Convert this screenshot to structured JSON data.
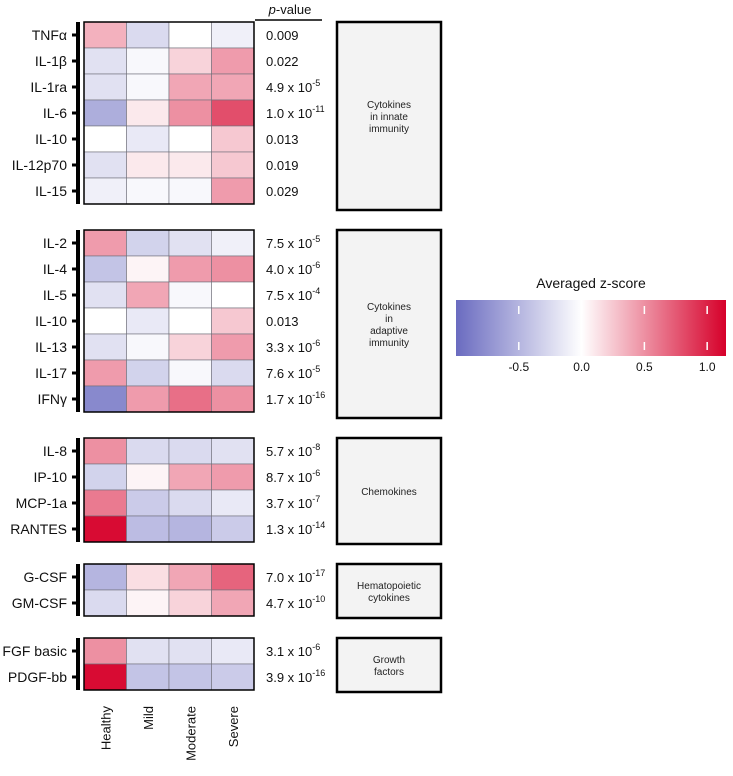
{
  "chart_data": {
    "type": "heatmap",
    "columns": [
      "Healthy",
      "Mild",
      "Moderate",
      "Severe"
    ],
    "pvalue_header": {
      "italic": "p",
      "rest": "-value"
    },
    "groups": [
      {
        "label_lines": [
          "Cytokines",
          "in innate",
          "immunity"
        ],
        "rows": [
          {
            "label": "TNFα",
            "values": [
              0.35,
              -0.25,
              0.0,
              -0.1
            ],
            "p_text": "0.009",
            "p_exp": ""
          },
          {
            "label": "IL-1β",
            "values": [
              -0.2,
              -0.05,
              0.2,
              0.45
            ],
            "p_text": "0.022",
            "p_exp": ""
          },
          {
            "label": "IL-1ra",
            "values": [
              -0.2,
              -0.05,
              0.4,
              0.4
            ],
            "p_text": "4.9 x 10",
            "p_exp": "-5"
          },
          {
            "label": "IL-6",
            "values": [
              -0.55,
              0.1,
              0.5,
              0.8
            ],
            "p_text": "1.0 x 10",
            "p_exp": "-11"
          },
          {
            "label": "IL-10",
            "values": [
              0.0,
              -0.15,
              0.0,
              0.25
            ],
            "p_text": "0.013",
            "p_exp": ""
          },
          {
            "label": "IL-12p70",
            "values": [
              -0.2,
              0.1,
              0.1,
              0.25
            ],
            "p_text": "0.019",
            "p_exp": ""
          },
          {
            "label": "IL-15",
            "values": [
              -0.1,
              -0.05,
              -0.05,
              0.45
            ],
            "p_text": "0.029",
            "p_exp": ""
          }
        ]
      },
      {
        "label_lines": [
          "Cytokines",
          "in",
          "adaptive",
          "immunity"
        ],
        "rows": [
          {
            "label": "IL-2",
            "values": [
              0.45,
              -0.3,
              -0.2,
              -0.1
            ],
            "p_text": "7.5 x 10",
            "p_exp": "-5"
          },
          {
            "label": "IL-4",
            "values": [
              -0.4,
              0.05,
              0.45,
              0.5
            ],
            "p_text": "4.0 x 10",
            "p_exp": "-6"
          },
          {
            "label": "IL-5",
            "values": [
              -0.2,
              0.4,
              -0.05,
              0.0
            ],
            "p_text": "7.5 x 10",
            "p_exp": "-4"
          },
          {
            "label": "IL-10",
            "values": [
              0.0,
              -0.15,
              0.0,
              0.25
            ],
            "p_text": "0.013",
            "p_exp": ""
          },
          {
            "label": "IL-13",
            "values": [
              -0.2,
              -0.05,
              0.2,
              0.45
            ],
            "p_text": "3.3 x 10",
            "p_exp": "-6"
          },
          {
            "label": "IL-17",
            "values": [
              0.45,
              -0.3,
              -0.05,
              -0.25
            ],
            "p_text": "7.6 x 10",
            "p_exp": "-5"
          },
          {
            "label": "IFNγ",
            "values": [
              -0.8,
              0.45,
              0.65,
              0.5
            ],
            "p_text": "1.7 x 10",
            "p_exp": "-16"
          }
        ]
      },
      {
        "label_lines": [
          "Chemokines"
        ],
        "rows": [
          {
            "label": "IL-8",
            "values": [
              0.5,
              -0.25,
              -0.25,
              -0.2
            ],
            "p_text": "5.7 x 10",
            "p_exp": "-8"
          },
          {
            "label": "IP-10",
            "values": [
              -0.3,
              0.05,
              0.4,
              0.45
            ],
            "p_text": "8.7 x 10",
            "p_exp": "-6"
          },
          {
            "label": "MCP-1a",
            "values": [
              0.6,
              -0.35,
              -0.25,
              -0.15
            ],
            "p_text": "3.7 x 10",
            "p_exp": "-7"
          },
          {
            "label": "RANTES",
            "values": [
              1.1,
              -0.45,
              -0.5,
              -0.35
            ],
            "p_text": "1.3 x 10",
            "p_exp": "-14"
          }
        ]
      },
      {
        "label_lines": [
          "Hematopoietic",
          "cytokines"
        ],
        "rows": [
          {
            "label": "G-CSF",
            "values": [
              -0.5,
              0.15,
              0.4,
              0.7
            ],
            "p_text": "7.0 x 10",
            "p_exp": "-17"
          },
          {
            "label": "GM-CSF",
            "values": [
              -0.25,
              0.05,
              0.2,
              0.4
            ],
            "p_text": "4.7 x 10",
            "p_exp": "-10"
          }
        ]
      },
      {
        "label_lines": [
          "Growth",
          "factors"
        ],
        "rows": [
          {
            "label": "FGF basic",
            "values": [
              0.5,
              -0.2,
              -0.2,
              -0.15
            ],
            "p_text": "3.1 x 10",
            "p_exp": "-6"
          },
          {
            "label": "PDGF-bb",
            "values": [
              1.1,
              -0.4,
              -0.4,
              -0.35
            ],
            "p_text": "3.9 x 10",
            "p_exp": "-16"
          }
        ]
      }
    ],
    "legend": {
      "title": "Averaged z-score",
      "ticks": [
        "-0.5",
        "0.0",
        "0.5",
        "1.0"
      ],
      "tick_values": [
        -0.5,
        0.0,
        0.5,
        1.0
      ],
      "range": [
        -1.0,
        1.15
      ],
      "low_color": "#6a6bc0",
      "mid_color": "#ffffff",
      "high_color": "#d6002a"
    }
  }
}
